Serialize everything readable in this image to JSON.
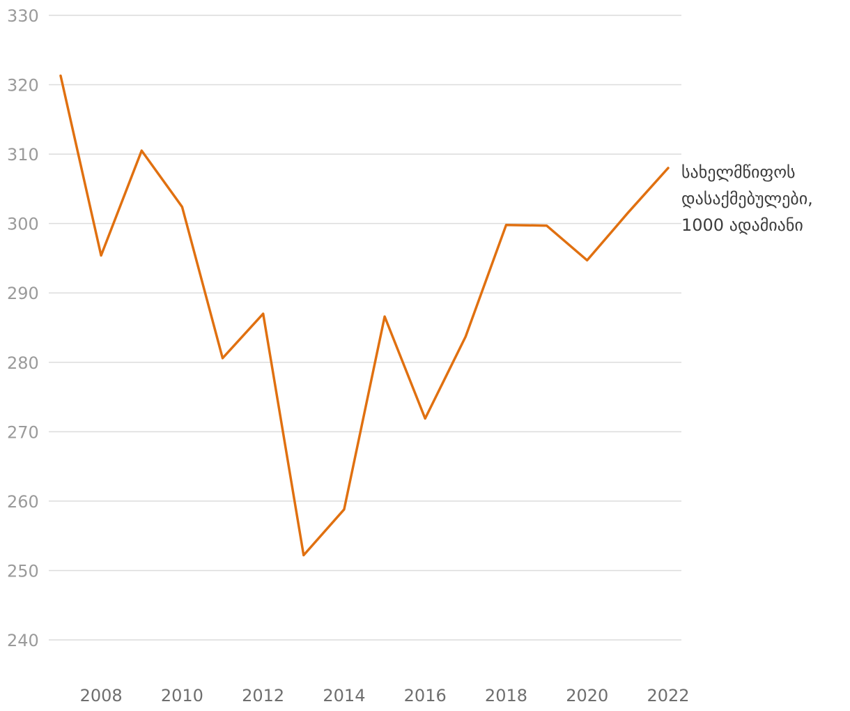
{
  "chart_data": {
    "type": "line",
    "title": "",
    "xlabel": "",
    "ylabel": "",
    "x": [
      2007,
      2008,
      2009,
      2010,
      2011,
      2012,
      2013,
      2014,
      2015,
      2016,
      2017,
      2018,
      2019,
      2020,
      2021,
      2022
    ],
    "x_ticks": [
      "2008",
      "2010",
      "2012",
      "2014",
      "2016",
      "2018",
      "2020",
      "2022"
    ],
    "y_ticks": [
      "240",
      "250",
      "260",
      "270",
      "280",
      "290",
      "300",
      "310",
      "320",
      "330"
    ],
    "xlim": [
      2006.7,
      2022.4
    ],
    "ylim": [
      240,
      330
    ],
    "grid": true,
    "legend": "none",
    "series": [
      {
        "name_lines": [
          "სახელმწიფოს",
          "დასაქმებულები,",
          "1000 ადამიანი"
        ],
        "color": "#e07010",
        "values": [
          321.3,
          295.4,
          310.5,
          302.4,
          280.6,
          287.0,
          252.2,
          258.8,
          286.6,
          271.9,
          283.7,
          299.8,
          299.7,
          294.7,
          301.5,
          308.0
        ]
      }
    ]
  }
}
